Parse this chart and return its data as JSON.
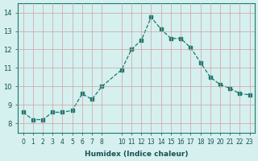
{
  "x": [
    0,
    1,
    2,
    3,
    4,
    5,
    6,
    7,
    8,
    10,
    11,
    12,
    13,
    14,
    15,
    16,
    17,
    18,
    19,
    20,
    21,
    22,
    23
  ],
  "y": [
    8.6,
    8.2,
    8.2,
    8.6,
    8.6,
    8.7,
    9.6,
    9.3,
    10.0,
    10.9,
    12.0,
    12.5,
    13.75,
    13.1,
    12.6,
    12.6,
    12.1,
    11.3,
    10.5,
    10.1,
    9.9,
    9.6,
    9.55
  ],
  "xlabel": "Humidex (Indice chaleur)",
  "xlim": [
    -0.5,
    23.5
  ],
  "ylim": [
    7.5,
    14.5
  ],
  "yticks": [
    8,
    9,
    10,
    11,
    12,
    13,
    14
  ],
  "line_color": "#1a7a6e",
  "marker_color": "#1a7a6e",
  "bg_color": "#d5f0ef",
  "grid_color": "#d0a0a0",
  "fig_bg": "#d5f0ef"
}
